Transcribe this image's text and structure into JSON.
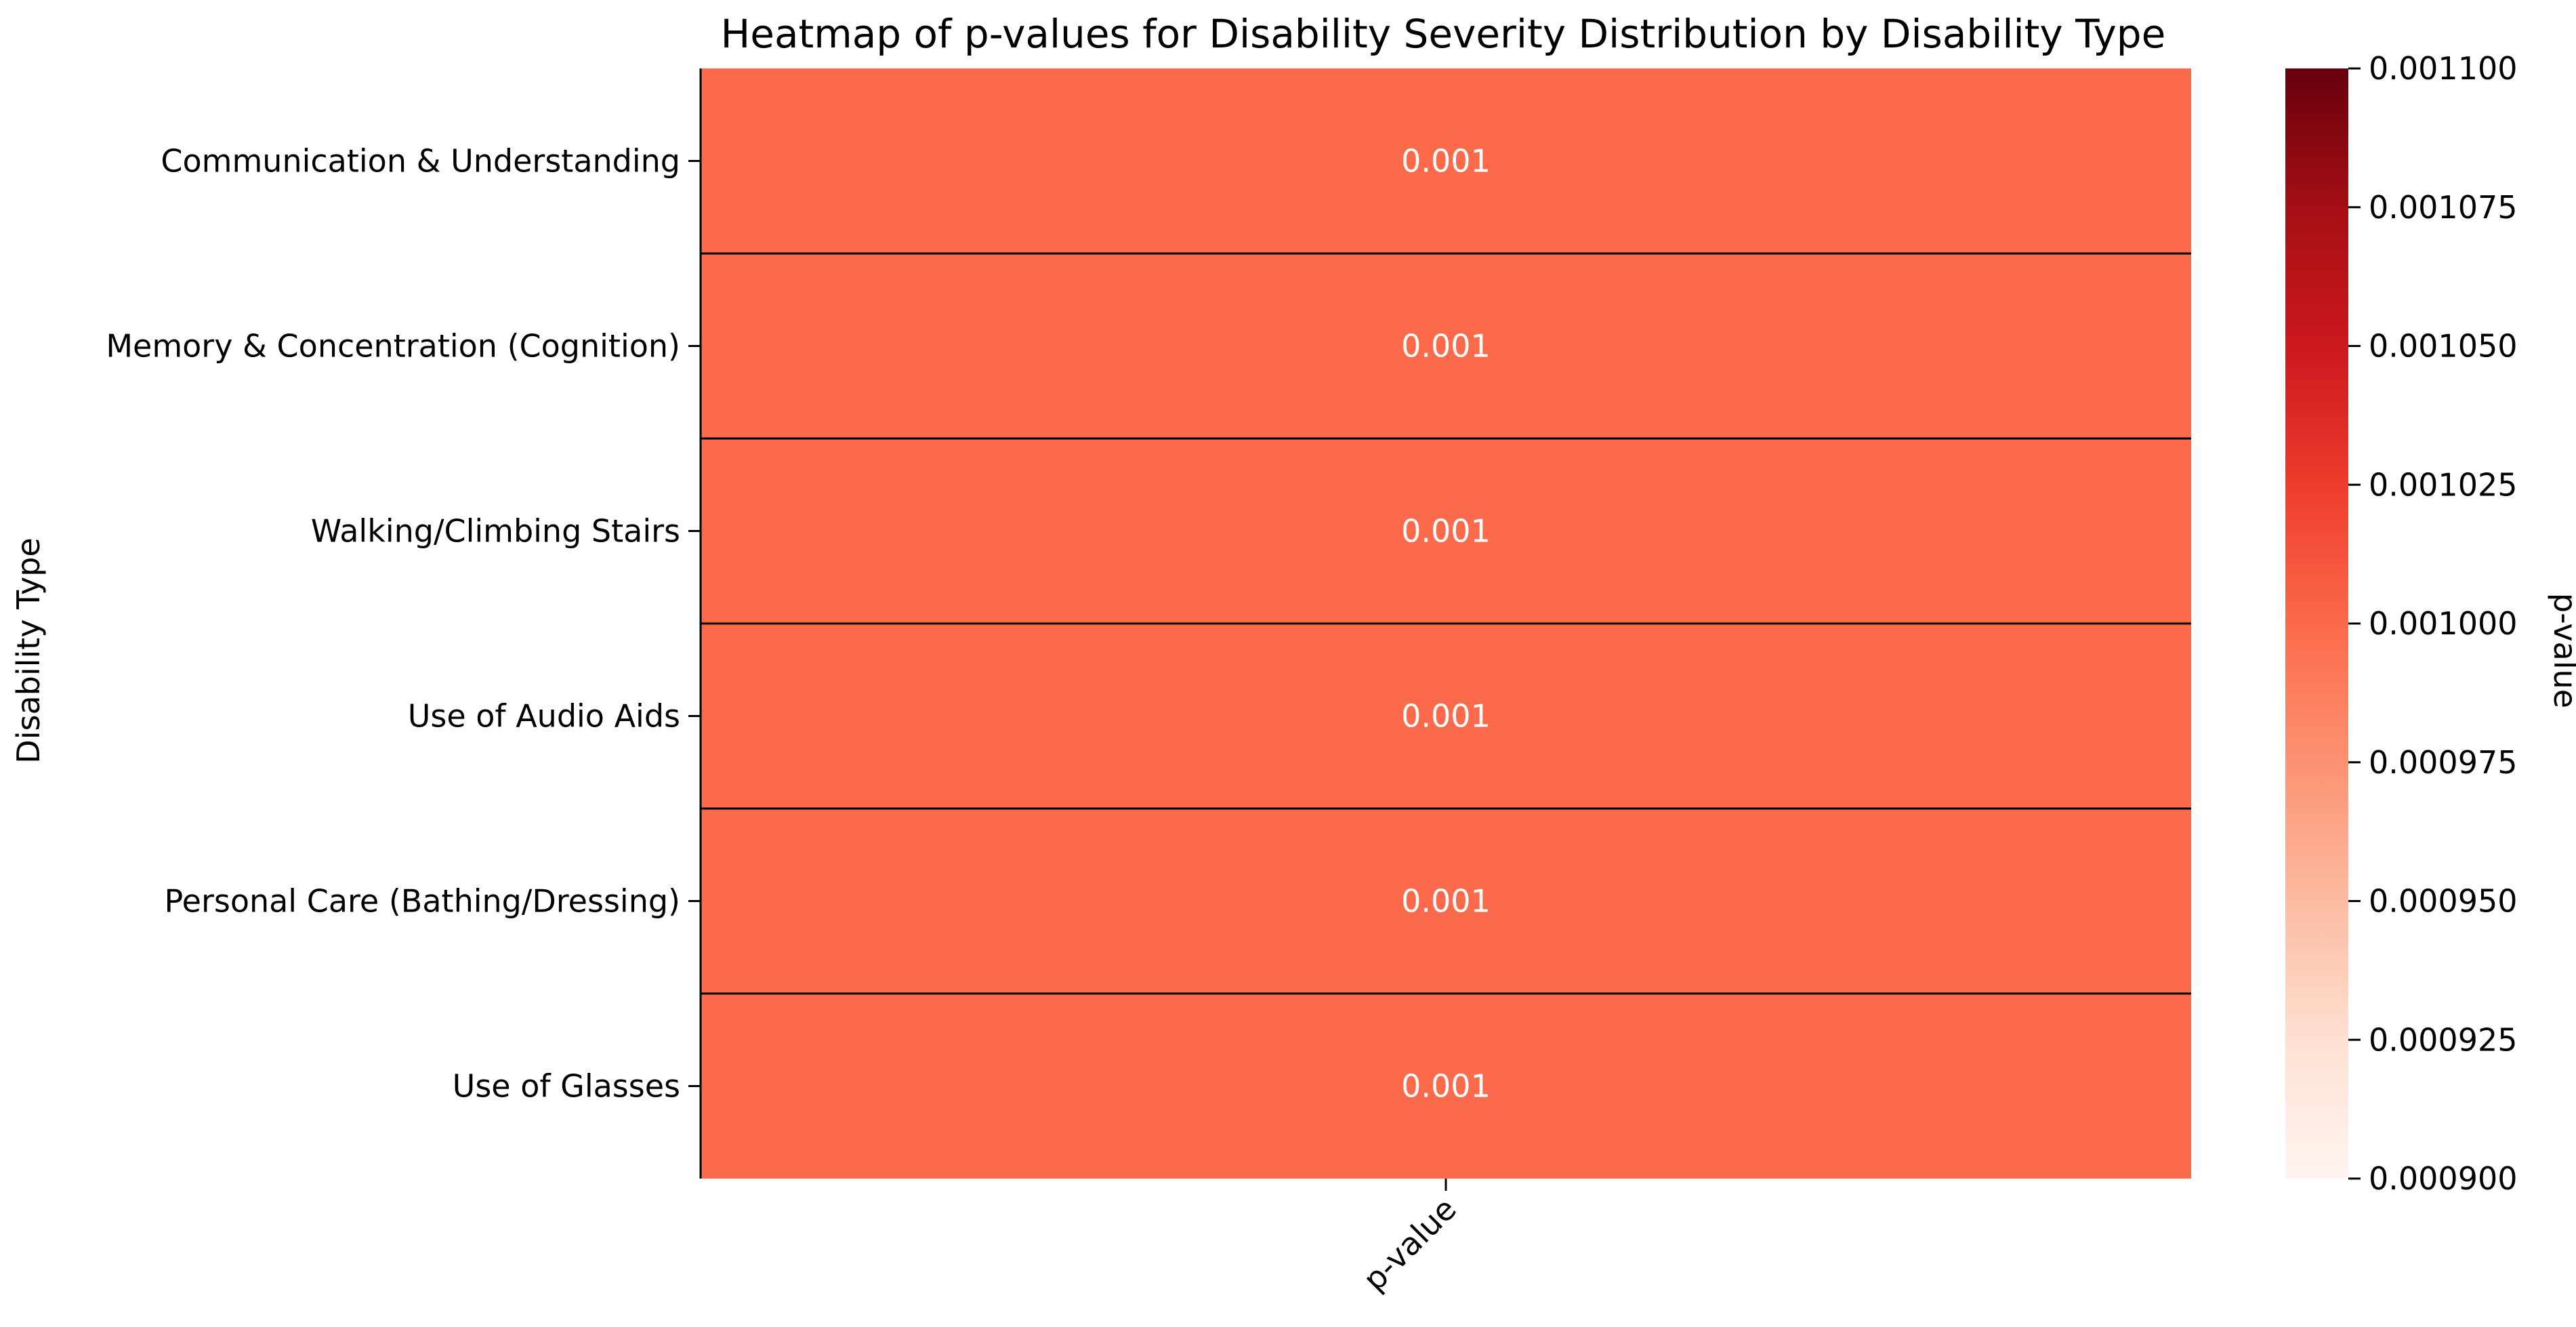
{
  "chart_data": {
    "type": "heatmap",
    "title": "Heatmap of p-values for Disability Severity Distribution by Disability Type",
    "xlabel": "",
    "ylabel": "Disability Type",
    "x_categories": [
      "p-value"
    ],
    "y_categories": [
      "Communication & Understanding",
      "Memory & Concentration (Cognition)",
      "Walking/Climbing Stairs",
      "Use of Audio Aids",
      "Personal Care (Bathing/Dressing)",
      "Use of Glasses"
    ],
    "values": [
      [
        0.001
      ],
      [
        0.001
      ],
      [
        0.001
      ],
      [
        0.001
      ],
      [
        0.001
      ],
      [
        0.001
      ]
    ],
    "annotations": [
      "0.001",
      "0.001",
      "0.001",
      "0.001",
      "0.001",
      "0.001"
    ],
    "colormap": "Reds",
    "colorbar": {
      "label": "p-value",
      "vmin": 0.0009,
      "vmax": 0.0011,
      "ticks": [
        "0.000900",
        "0.000925",
        "0.000950",
        "0.000975",
        "0.001000",
        "0.001025",
        "0.001050",
        "0.001075",
        "0.001100"
      ],
      "tick_values": [
        0.0009,
        0.000925,
        0.00095,
        0.000975,
        0.001,
        0.001025,
        0.00105,
        0.001075,
        0.0011
      ],
      "stops": [
        "#fff5f0",
        "#fee0d2",
        "#fcbba1",
        "#fc9272",
        "#fb6a4a",
        "#ef3b2c",
        "#cb181d",
        "#a50f15",
        "#67000d"
      ]
    },
    "cell_color": "#fb6a4a",
    "annotation_color": "#ffffff",
    "line_color": "#000000"
  }
}
